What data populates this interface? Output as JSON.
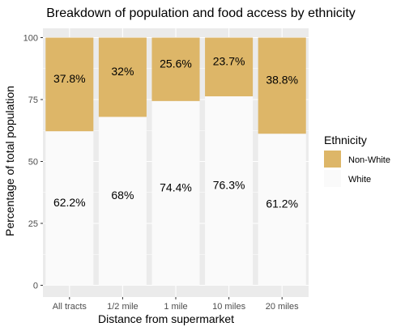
{
  "chart_data": {
    "type": "bar",
    "stacked": true,
    "title": "Breakdown of population and food access by ethnicity",
    "xlabel": "Distance from supermarket",
    "ylabel": "Percentage of total population",
    "ylim": [
      0,
      100
    ],
    "yticks": [
      0,
      25,
      50,
      75,
      100
    ],
    "categories": [
      "All tracts",
      "1/2 mile",
      "1 mile",
      "10 miles",
      "20 miles"
    ],
    "series": [
      {
        "name": "White",
        "color": "#fafafa",
        "values": [
          62.2,
          68,
          74.4,
          76.3,
          61.2
        ],
        "labels": [
          "62.2%",
          "68%",
          "74.4%",
          "76.3%",
          "61.2%"
        ]
      },
      {
        "name": "Non-White",
        "color": "#ddb668",
        "values": [
          37.8,
          32,
          25.6,
          23.7,
          38.8
        ],
        "labels": [
          "37.8%",
          "32%",
          "25.6%",
          "23.7%",
          "38.8%"
        ]
      }
    ],
    "legend": {
      "title": "Ethnicity",
      "position": "right",
      "entries": [
        "Non-White",
        "White"
      ]
    },
    "grid": true,
    "panel_background": "#ebebeb",
    "grid_color": "#ffffff"
  }
}
